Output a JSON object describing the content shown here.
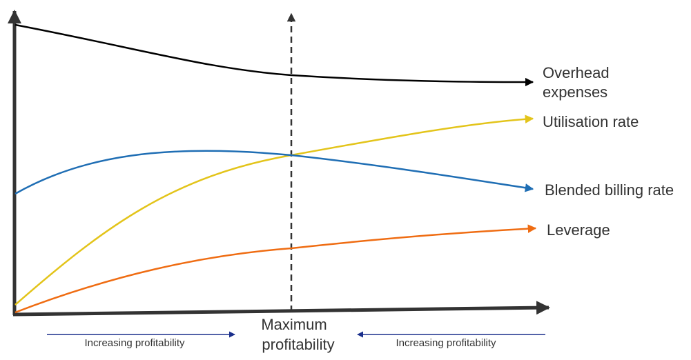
{
  "diagram": {
    "curves": {
      "overhead": {
        "label_line1": "Overhead",
        "label_line2": "expenses",
        "color": "#000000"
      },
      "utilisation": {
        "label": "Utilisation rate",
        "color": "#e3c41a"
      },
      "billing": {
        "label": "Blended billing rate",
        "color": "#1f6eb4"
      },
      "leverage": {
        "label": "Leverage",
        "color": "#ef6c12"
      }
    },
    "marker": {
      "label_line1": "Maximum",
      "label_line2": "profitability"
    },
    "bottom_arrows": {
      "left": {
        "label": "Increasing profitability",
        "color": "#1a2f8c"
      },
      "right": {
        "label": "Increasing profitability",
        "color": "#1a2f8c"
      }
    },
    "axis_color": "#333333"
  }
}
